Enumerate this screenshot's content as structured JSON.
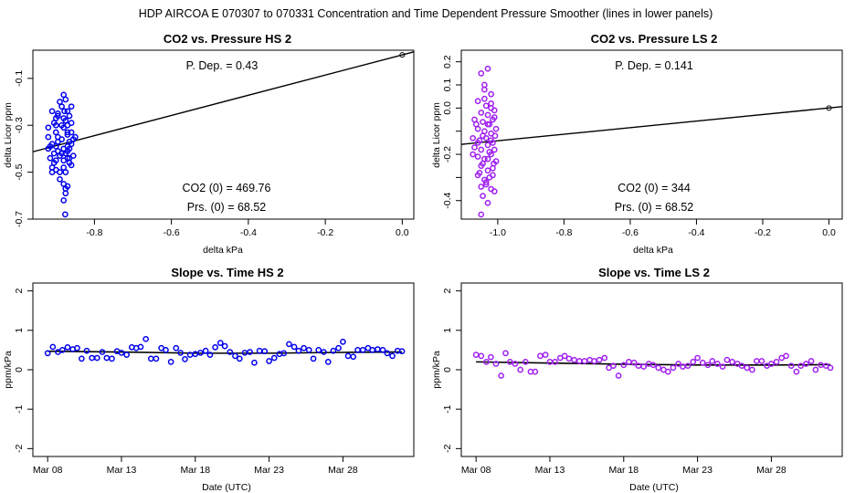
{
  "suptitle": "HDP    AIRCOA E    070307 to 070331    Concentration and Time Dependent Pressure Smoother (lines in lower panels)",
  "colors": {
    "hs": "#0000ee",
    "ls": "#a020f0",
    "line": "#000000"
  },
  "chart_data": [
    {
      "id": "hs-pressure",
      "type": "scatter",
      "title": "CO2 vs. Pressure HS 2",
      "xlabel": "delta kPa",
      "ylabel": "delta Licor ppm",
      "xlim": [
        -0.96,
        0.03
      ],
      "ylim": [
        -0.7,
        0.02
      ],
      "xticks": [
        -0.8,
        -0.6,
        -0.4,
        -0.2,
        0.0
      ],
      "xtick_labels": [
        "-0.8",
        "-0.6",
        "-0.4",
        "-0.2",
        "0.0"
      ],
      "yticks": [
        -0.7,
        -0.5,
        -0.3,
        -0.1
      ],
      "ytick_labels": [
        "-0.7",
        "-0.5",
        "-0.3",
        "-0.1"
      ],
      "annotations": {
        "pdep": "P. Dep. =  0.43",
        "co2": "CO2 (0) =  469.76",
        "prs": "Prs. (0) =  68.52"
      },
      "fit_line": {
        "x": [
          -0.96,
          0.03
        ],
        "y": [
          -0.413,
          0.013
        ]
      },
      "origin_point": [
        0,
        0
      ],
      "points": [
        [
          -0.92,
          -0.31
        ],
        [
          -0.905,
          -0.29
        ],
        [
          -0.91,
          -0.24
        ],
        [
          -0.895,
          -0.25
        ],
        [
          -0.9,
          -0.27
        ],
        [
          -0.885,
          -0.22
        ],
        [
          -0.89,
          -0.2
        ],
        [
          -0.88,
          -0.17
        ],
        [
          -0.875,
          -0.19
        ],
        [
          -0.87,
          -0.24
        ],
        [
          -0.865,
          -0.26
        ],
        [
          -0.86,
          -0.22
        ],
        [
          -0.9,
          -0.33
        ],
        [
          -0.895,
          -0.35
        ],
        [
          -0.885,
          -0.36
        ],
        [
          -0.87,
          -0.34
        ],
        [
          -0.865,
          -0.37
        ],
        [
          -0.855,
          -0.36
        ],
        [
          -0.85,
          -0.35
        ],
        [
          -0.86,
          -0.33
        ],
        [
          -0.91,
          -0.38
        ],
        [
          -0.9,
          -0.39
        ],
        [
          -0.895,
          -0.41
        ],
        [
          -0.88,
          -0.4
        ],
        [
          -0.875,
          -0.42
        ],
        [
          -0.87,
          -0.39
        ],
        [
          -0.865,
          -0.4
        ],
        [
          -0.86,
          -0.38
        ],
        [
          -0.89,
          -0.43
        ],
        [
          -0.88,
          -0.45
        ],
        [
          -0.87,
          -0.44
        ],
        [
          -0.865,
          -0.46
        ],
        [
          -0.905,
          -0.46
        ],
        [
          -0.9,
          -0.49
        ],
        [
          -0.89,
          -0.5
        ],
        [
          -0.88,
          -0.48
        ],
        [
          -0.875,
          -0.5
        ],
        [
          -0.86,
          -0.47
        ],
        [
          -0.92,
          -0.4
        ],
        [
          -0.915,
          -0.44
        ],
        [
          -0.91,
          -0.48
        ],
        [
          -0.905,
          -0.42
        ],
        [
          -0.895,
          -0.37
        ],
        [
          -0.88,
          -0.31
        ],
        [
          -0.875,
          -0.28
        ],
        [
          -0.87,
          -0.3
        ],
        [
          -0.86,
          -0.29
        ],
        [
          -0.855,
          -0.43
        ],
        [
          -0.89,
          -0.53
        ],
        [
          -0.88,
          -0.55
        ],
        [
          -0.875,
          -0.57
        ],
        [
          -0.87,
          -0.56
        ],
        [
          -0.875,
          -0.59
        ],
        [
          -0.88,
          -0.62
        ],
        [
          -0.876,
          -0.68
        ],
        [
          -0.91,
          -0.5
        ],
        [
          -0.9,
          -0.45
        ],
        [
          -0.885,
          -0.42
        ],
        [
          -0.87,
          -0.41
        ],
        [
          -0.865,
          -0.44
        ],
        [
          -0.92,
          -0.35
        ],
        [
          -0.915,
          -0.39
        ],
        [
          -0.9,
          -0.3
        ],
        [
          -0.895,
          -0.26
        ],
        [
          -0.885,
          -0.3
        ],
        [
          -0.88,
          -0.27
        ],
        [
          -0.878,
          -0.24
        ],
        [
          -0.87,
          -0.33
        ]
      ]
    },
    {
      "id": "ls-pressure",
      "type": "scatter",
      "title": "CO2 vs. Pressure LS 2",
      "xlabel": "delta kPa",
      "ylabel": "delta Licor ppm",
      "xlim": [
        -1.11,
        0.04
      ],
      "ylim": [
        -0.48,
        0.25
      ],
      "xticks": [
        -1.0,
        -0.8,
        -0.6,
        -0.4,
        -0.2,
        0.0
      ],
      "xtick_labels": [
        "-1.0",
        "-0.8",
        "-0.6",
        "-0.4",
        "-0.2",
        "0.0"
      ],
      "yticks": [
        -0.4,
        -0.3,
        -0.2,
        -0.1,
        0.0,
        0.1,
        0.2
      ],
      "ytick_labels": [
        "-0.4",
        "",
        "-0.2",
        "",
        "0.0",
        "0.1",
        "0.2"
      ],
      "annotations": {
        "pdep": "P. Dep. =  0.141",
        "co2": "CO2 (0) =  344",
        "prs": "Prs. (0) =  68.52"
      },
      "fit_line": {
        "x": [
          -1.11,
          0.04
        ],
        "y": [
          -0.157,
          0.006
        ]
      },
      "origin_point": [
        0,
        0
      ],
      "points": [
        [
          -1.05,
          0.15
        ],
        [
          -1.03,
          0.17
        ],
        [
          -1.04,
          0.08
        ],
        [
          -1.02,
          0.06
        ],
        [
          -1.06,
          0.03
        ],
        [
          -1.035,
          0.01
        ],
        [
          -1.02,
          0.0
        ],
        [
          -1.05,
          -0.02
        ],
        [
          -1.03,
          -0.03
        ],
        [
          -1.01,
          -0.04
        ],
        [
          -1.07,
          -0.05
        ],
        [
          -1.045,
          -0.06
        ],
        [
          -1.025,
          -0.07
        ],
        [
          -1.015,
          -0.05
        ],
        [
          -1.06,
          -0.09
        ],
        [
          -1.04,
          -0.1
        ],
        [
          -1.02,
          -0.11
        ],
        [
          -1.005,
          -0.09
        ],
        [
          -1.075,
          -0.13
        ],
        [
          -1.055,
          -0.14
        ],
        [
          -1.035,
          -0.13
        ],
        [
          -1.015,
          -0.15
        ],
        [
          -1.07,
          -0.17
        ],
        [
          -1.05,
          -0.18
        ],
        [
          -1.03,
          -0.16
        ],
        [
          -1.01,
          -0.18
        ],
        [
          -1.06,
          -0.21
        ],
        [
          -1.04,
          -0.22
        ],
        [
          -1.02,
          -0.2
        ],
        [
          -1.005,
          -0.23
        ],
        [
          -1.05,
          -0.25
        ],
        [
          -1.03,
          -0.27
        ],
        [
          -1.015,
          -0.26
        ],
        [
          -1.06,
          -0.29
        ],
        [
          -1.04,
          -0.31
        ],
        [
          -1.025,
          -0.3
        ],
        [
          -1.05,
          -0.34
        ],
        [
          -1.035,
          -0.33
        ],
        [
          -1.01,
          -0.36
        ],
        [
          -1.045,
          -0.38
        ],
        [
          -1.03,
          -0.41
        ],
        [
          -1.05,
          -0.46
        ],
        [
          -1.02,
          0.02
        ],
        [
          -1.04,
          0.04
        ],
        [
          -1.01,
          -0.01
        ],
        [
          -1.065,
          -0.07
        ],
        [
          -1.045,
          -0.12
        ],
        [
          -1.025,
          -0.19
        ],
        [
          -1.012,
          -0.24
        ],
        [
          -1.055,
          -0.28
        ],
        [
          -1.035,
          -0.32
        ],
        [
          -1.02,
          -0.35
        ],
        [
          -1.04,
          0.1
        ],
        [
          -1.06,
          -0.15
        ],
        [
          -1.02,
          -0.14
        ],
        [
          -1.03,
          -0.22
        ],
        [
          -1.008,
          -0.12
        ],
        [
          -1.075,
          -0.2
        ],
        [
          -1.03,
          -0.07
        ],
        [
          -1.045,
          -0.24
        ],
        [
          -1.015,
          -0.29
        ]
      ]
    },
    {
      "id": "hs-time",
      "type": "scatter",
      "title": "Slope vs. Time HS 2",
      "xlabel": "Date (UTC)",
      "ylabel": "ppm/kPa",
      "xlim": [
        7.0,
        32.8
      ],
      "ylim": [
        -2.2,
        2.2
      ],
      "xticks": [
        8,
        13,
        18,
        23,
        28
      ],
      "xtick_labels": [
        "Mar 08",
        "Mar 13",
        "Mar 18",
        "Mar 23",
        "Mar 28"
      ],
      "yticks": [
        -2,
        -1,
        0,
        1,
        2
      ],
      "ytick_labels": [
        "-2",
        "-1",
        "0",
        "1",
        "2"
      ],
      "smoother": {
        "x": [
          8.0,
          13.0,
          18.0,
          23.0,
          28.0,
          32.0
        ],
        "y": [
          0.47,
          0.45,
          0.42,
          0.42,
          0.44,
          0.45
        ]
      },
      "points": [
        [
          8.0,
          0.42
        ],
        [
          8.35,
          0.58
        ],
        [
          8.7,
          0.45
        ],
        [
          9.0,
          0.5
        ],
        [
          9.35,
          0.57
        ],
        [
          9.7,
          0.52
        ],
        [
          10.0,
          0.55
        ],
        [
          10.3,
          0.28
        ],
        [
          10.65,
          0.48
        ],
        [
          11.0,
          0.3
        ],
        [
          11.35,
          0.3
        ],
        [
          11.7,
          0.45
        ],
        [
          12.0,
          0.3
        ],
        [
          12.35,
          0.28
        ],
        [
          12.7,
          0.47
        ],
        [
          13.0,
          0.43
        ],
        [
          13.35,
          0.38
        ],
        [
          13.7,
          0.57
        ],
        [
          14.0,
          0.55
        ],
        [
          14.3,
          0.58
        ],
        [
          14.65,
          0.78
        ],
        [
          15.0,
          0.28
        ],
        [
          15.35,
          0.28
        ],
        [
          15.7,
          0.55
        ],
        [
          16.0,
          0.5
        ],
        [
          16.35,
          0.2
        ],
        [
          16.7,
          0.55
        ],
        [
          17.0,
          0.43
        ],
        [
          17.3,
          0.27
        ],
        [
          17.65,
          0.38
        ],
        [
          18.0,
          0.4
        ],
        [
          18.35,
          0.43
        ],
        [
          18.7,
          0.48
        ],
        [
          19.0,
          0.38
        ],
        [
          19.35,
          0.57
        ],
        [
          19.7,
          0.68
        ],
        [
          20.0,
          0.6
        ],
        [
          20.35,
          0.45
        ],
        [
          20.7,
          0.35
        ],
        [
          21.0,
          0.28
        ],
        [
          21.35,
          0.43
        ],
        [
          21.7,
          0.45
        ],
        [
          22.0,
          0.18
        ],
        [
          22.35,
          0.48
        ],
        [
          22.7,
          0.47
        ],
        [
          23.0,
          0.22
        ],
        [
          23.35,
          0.3
        ],
        [
          23.7,
          0.4
        ],
        [
          24.0,
          0.42
        ],
        [
          24.35,
          0.65
        ],
        [
          24.7,
          0.58
        ],
        [
          25.0,
          0.48
        ],
        [
          25.35,
          0.55
        ],
        [
          25.7,
          0.5
        ],
        [
          26.0,
          0.28
        ],
        [
          26.35,
          0.5
        ],
        [
          26.7,
          0.45
        ],
        [
          27.0,
          0.2
        ],
        [
          27.35,
          0.48
        ],
        [
          27.7,
          0.55
        ],
        [
          28.0,
          0.71
        ],
        [
          28.35,
          0.35
        ],
        [
          28.7,
          0.33
        ],
        [
          29.0,
          0.5
        ],
        [
          29.35,
          0.5
        ],
        [
          29.7,
          0.55
        ],
        [
          30.0,
          0.5
        ],
        [
          30.35,
          0.52
        ],
        [
          30.7,
          0.5
        ],
        [
          31.0,
          0.42
        ],
        [
          31.35,
          0.35
        ],
        [
          31.7,
          0.48
        ],
        [
          32.0,
          0.47
        ]
      ]
    },
    {
      "id": "ls-time",
      "type": "scatter",
      "title": "Slope vs. Time LS 2",
      "xlabel": "Date (UTC)",
      "ylabel": "ppm/kPa",
      "xlim": [
        7.0,
        32.8
      ],
      "ylim": [
        -2.2,
        2.2
      ],
      "xticks": [
        8,
        13,
        18,
        23,
        28
      ],
      "xtick_labels": [
        "Mar 08",
        "Mar 13",
        "Mar 18",
        "Mar 23",
        "Mar 28"
      ],
      "yticks": [
        -2,
        -1,
        0,
        1,
        2
      ],
      "ytick_labels": [
        "-2",
        "-1",
        "0",
        "1",
        "2"
      ],
      "smoother": {
        "x": [
          8.0,
          13.0,
          18.0,
          23.0,
          28.0,
          32.0
        ],
        "y": [
          0.2,
          0.17,
          0.14,
          0.12,
          0.12,
          0.13
        ]
      },
      "points": [
        [
          8.0,
          0.38
        ],
        [
          8.35,
          0.35
        ],
        [
          8.7,
          0.2
        ],
        [
          9.0,
          0.32
        ],
        [
          9.35,
          0.15
        ],
        [
          9.7,
          -0.15
        ],
        [
          10.0,
          0.42
        ],
        [
          10.3,
          0.2
        ],
        [
          10.65,
          0.15
        ],
        [
          11.0,
          0.0
        ],
        [
          11.35,
          0.2
        ],
        [
          11.7,
          -0.05
        ],
        [
          12.0,
          -0.05
        ],
        [
          12.35,
          0.35
        ],
        [
          12.7,
          0.38
        ],
        [
          13.0,
          0.2
        ],
        [
          13.35,
          0.2
        ],
        [
          13.7,
          0.3
        ],
        [
          14.0,
          0.35
        ],
        [
          14.3,
          0.28
        ],
        [
          14.65,
          0.25
        ],
        [
          15.0,
          0.22
        ],
        [
          15.35,
          0.22
        ],
        [
          15.7,
          0.25
        ],
        [
          16.0,
          0.22
        ],
        [
          16.35,
          0.25
        ],
        [
          16.7,
          0.3
        ],
        [
          17.0,
          0.05
        ],
        [
          17.3,
          0.1
        ],
        [
          17.65,
          -0.15
        ],
        [
          18.0,
          0.12
        ],
        [
          18.35,
          0.2
        ],
        [
          18.7,
          0.18
        ],
        [
          19.0,
          0.1
        ],
        [
          19.35,
          0.08
        ],
        [
          19.7,
          0.15
        ],
        [
          20.0,
          0.12
        ],
        [
          20.35,
          0.05
        ],
        [
          20.7,
          0.0
        ],
        [
          21.0,
          -0.05
        ],
        [
          21.35,
          0.05
        ],
        [
          21.7,
          0.15
        ],
        [
          22.0,
          0.08
        ],
        [
          22.35,
          0.1
        ],
        [
          22.7,
          0.2
        ],
        [
          23.0,
          0.3
        ],
        [
          23.35,
          0.18
        ],
        [
          23.7,
          0.12
        ],
        [
          24.0,
          0.22
        ],
        [
          24.35,
          0.15
        ],
        [
          24.7,
          0.08
        ],
        [
          25.0,
          0.25
        ],
        [
          25.35,
          0.2
        ],
        [
          25.7,
          0.15
        ],
        [
          26.0,
          0.1
        ],
        [
          26.35,
          0.05
        ],
        [
          26.7,
          0.0
        ],
        [
          27.0,
          0.22
        ],
        [
          27.35,
          0.22
        ],
        [
          27.7,
          0.1
        ],
        [
          28.0,
          0.15
        ],
        [
          28.35,
          0.2
        ],
        [
          28.7,
          0.3
        ],
        [
          29.0,
          0.35
        ],
        [
          29.35,
          0.1
        ],
        [
          29.7,
          -0.05
        ],
        [
          30.0,
          0.1
        ],
        [
          30.35,
          0.15
        ],
        [
          30.7,
          0.22
        ],
        [
          31.0,
          0.0
        ],
        [
          31.35,
          0.12
        ],
        [
          31.7,
          0.1
        ],
        [
          32.0,
          0.05
        ]
      ]
    }
  ]
}
